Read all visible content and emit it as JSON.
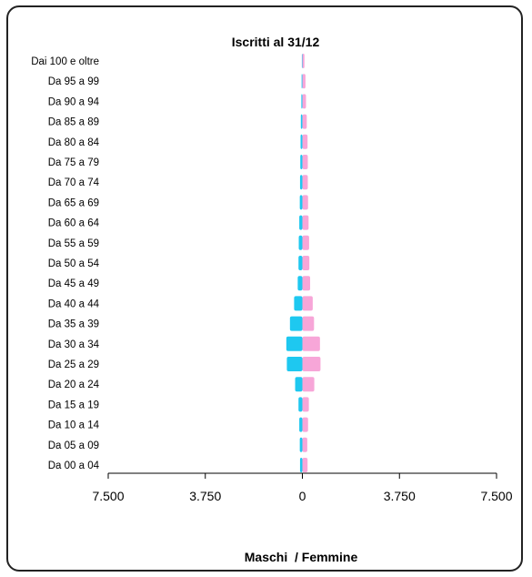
{
  "chart_data": {
    "type": "bar",
    "orientation": "horizontal",
    "layout": "population-pyramid",
    "title": "Iscritti al 31/12",
    "xlabel": "Maschi  / Femmine",
    "xlim": [
      -7500,
      7500
    ],
    "xticks": [
      -7500,
      -3750,
      0,
      3750,
      7500
    ],
    "xtick_labels": [
      "7.500",
      "3.750",
      "0",
      "3.750",
      "7.500"
    ],
    "categories": [
      "Dai 100 e oltre",
      "Da 95 a 99",
      "Da 90 a 94",
      "Da 85 a 89",
      "Da 80 a 84",
      "Da 75 a 79",
      "Da 70 a 74",
      "Da 65 a 69",
      "Da 60 a 64",
      "Da 55 a 59",
      "Da 50 a 54",
      "Da 45 a 49",
      "Da 40 a 44",
      "Da 35 a 39",
      "Da 30 a 34",
      "Da 25 a 29",
      "Da 20 a 24",
      "Da 15 a 19",
      "Da 10 a 14",
      "Da 05 a 09",
      "Da 00 a 04"
    ],
    "series": [
      {
        "name": "Maschi",
        "color": "#1ec8f0",
        "values": [
          20,
          30,
          40,
          60,
          70,
          80,
          90,
          100,
          120,
          140,
          150,
          180,
          320,
          480,
          620,
          600,
          280,
          150,
          120,
          100,
          90
        ]
      },
      {
        "name": "Femmine",
        "color": "#f7a6d8",
        "values": [
          80,
          120,
          140,
          170,
          200,
          210,
          210,
          220,
          240,
          260,
          270,
          300,
          400,
          450,
          680,
          700,
          460,
          250,
          220,
          190,
          200
        ]
      }
    ],
    "grid": false,
    "legend": "none"
  }
}
